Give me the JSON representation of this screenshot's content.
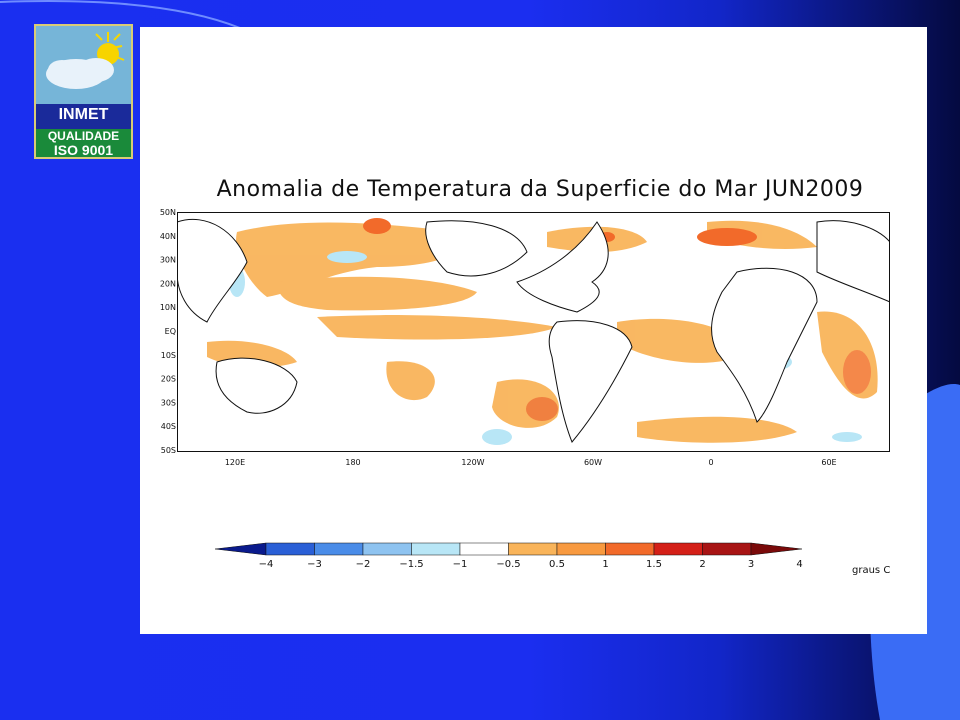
{
  "logo": {
    "brand": "INMET",
    "line2": "QUALIDADE",
    "line3": "ISO 9001"
  },
  "map": {
    "title": "Anomalia de Temperatura da Superficie do Mar JUN2009",
    "lat_labels": [
      "50N",
      "40N",
      "30N",
      "20N",
      "10N",
      "EQ",
      "10S",
      "20S",
      "30S",
      "40S",
      "50S"
    ],
    "lon_labels": [
      "120E",
      "180",
      "120W",
      "60W",
      "0",
      "60E"
    ]
  },
  "colorbar": {
    "tick_labels": [
      "−4",
      "−3",
      "−2",
      "−1.5",
      "−1",
      "−0.5",
      "0.5",
      "1",
      "1.5",
      "2",
      "3",
      "4"
    ],
    "units": "graus C",
    "colors": [
      "#0a1a8c",
      "#2a5fd6",
      "#4a8ce8",
      "#8ec3f0",
      "#b8e6f6",
      "#ffffff",
      "#f9b45a",
      "#f89a40",
      "#f26a2a",
      "#d42018",
      "#a81414",
      "#7a0a0a"
    ]
  }
}
